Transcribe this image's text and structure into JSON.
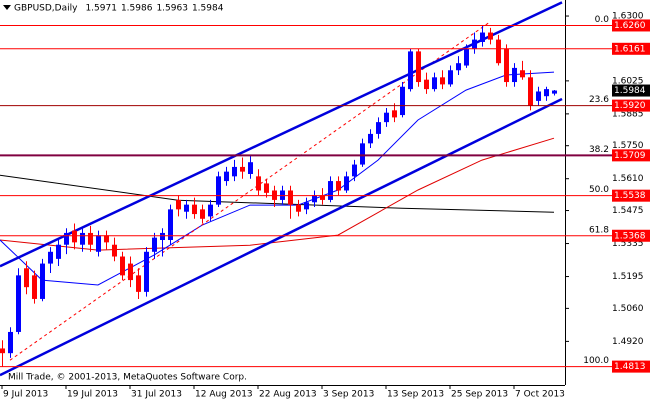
{
  "chart_data": {
    "type": "candlestick",
    "title": "GBPUSD,Daily",
    "footer": "Mill Trade, © 2001-2013, MetaQuotes Software Corp.",
    "up_color": "#0000ff",
    "down_color": "#ff0000",
    "categories": [
      "9 Jul 2013",
      null,
      null,
      null,
      null,
      null,
      null,
      null,
      "19 Jul 2013",
      null,
      null,
      null,
      null,
      null,
      null,
      null,
      "31 Jul 2013",
      null,
      null,
      null,
      null,
      null,
      null,
      null,
      "12 Aug 2013",
      null,
      null,
      null,
      null,
      null,
      null,
      null,
      "22 Aug 2013",
      null,
      null,
      null,
      null,
      null,
      null,
      null,
      "3 Sep 2013",
      null,
      null,
      null,
      null,
      null,
      null,
      null,
      "13 Sep 2013",
      null,
      null,
      null,
      null,
      null,
      null,
      null,
      "25 Sep 2013",
      null,
      null,
      null,
      null,
      null,
      null,
      null,
      "7 Oct 2013",
      null,
      null,
      null,
      null,
      null
    ],
    "open": [
      1.489,
      1.487,
      1.496,
      1.523,
      1.52,
      1.51,
      1.525,
      1.527,
      1.533,
      1.539,
      1.533,
      1.538,
      1.53,
      1.537,
      1.533,
      1.528,
      1.525,
      1.52,
      1.513,
      1.53,
      1.535,
      1.535,
      1.552,
      1.547,
      1.55,
      1.548,
      1.545,
      1.55,
      1.56,
      1.562,
      1.566,
      1.563,
      1.562,
      1.559,
      1.556,
      1.552,
      1.556,
      1.55,
      1.548,
      1.551,
      1.554,
      1.552,
      1.56,
      1.556,
      1.562,
      1.567,
      1.576,
      1.58,
      1.585,
      1.59,
      1.588,
      1.599,
      1.615,
      1.603,
      1.599,
      1.604,
      1.601,
      1.607,
      1.609,
      1.616,
      1.619,
      1.623,
      1.62,
      1.616,
      1.602,
      1.607,
      1.604,
      1.594,
      1.596,
      1.5971
    ],
    "high": [
      1.4925,
      1.498,
      1.523,
      1.526,
      1.522,
      1.527,
      1.532,
      1.535,
      1.54,
      1.542,
      1.54,
      1.541,
      1.539,
      1.539,
      1.536,
      1.53,
      1.528,
      1.523,
      1.532,
      1.538,
      1.54,
      1.55,
      1.554,
      1.552,
      1.553,
      1.55,
      1.552,
      1.564,
      1.566,
      1.569,
      1.57,
      1.5709,
      1.565,
      1.561,
      1.558,
      1.558,
      1.558,
      1.552,
      1.553,
      1.556,
      1.557,
      1.562,
      1.562,
      1.564,
      1.569,
      1.578,
      1.582,
      1.587,
      1.591,
      1.593,
      1.602,
      1.6161,
      1.616,
      1.606,
      1.606,
      1.607,
      1.609,
      1.613,
      1.618,
      1.623,
      1.626,
      1.625,
      1.622,
      1.618,
      1.61,
      1.611,
      1.607,
      1.6,
      1.6,
      1.5986
    ],
    "low": [
      1.4813,
      1.485,
      1.495,
      1.512,
      1.508,
      1.509,
      1.521,
      1.524,
      1.529,
      1.531,
      1.53,
      1.53,
      1.528,
      1.531,
      1.526,
      1.518,
      1.515,
      1.51,
      1.511,
      1.527,
      1.528,
      1.533,
      1.545,
      1.544,
      1.544,
      1.542,
      1.543,
      1.549,
      1.558,
      1.56,
      1.561,
      1.561,
      1.554,
      1.553,
      1.549,
      1.55,
      1.544,
      1.545,
      1.546,
      1.549,
      1.55,
      1.551,
      1.554,
      1.555,
      1.56,
      1.566,
      1.574,
      1.578,
      1.583,
      1.585,
      1.587,
      1.598,
      1.6,
      1.597,
      1.598,
      1.599,
      1.6,
      1.605,
      1.608,
      1.614,
      1.617,
      1.618,
      1.609,
      1.6,
      1.6,
      1.603,
      1.59,
      1.592,
      1.594,
      1.5963
    ],
    "close": [
      1.487,
      1.496,
      1.52,
      1.515,
      1.51,
      1.525,
      1.53,
      1.533,
      1.538,
      1.534,
      1.538,
      1.533,
      1.537,
      1.534,
      1.528,
      1.52,
      1.518,
      1.513,
      1.53,
      1.536,
      1.538,
      1.548,
      1.548,
      1.55,
      1.546,
      1.544,
      1.55,
      1.562,
      1.564,
      1.566,
      1.564,
      1.568,
      1.556,
      1.555,
      1.552,
      1.556,
      1.55,
      1.547,
      1.551,
      1.554,
      1.552,
      1.56,
      1.556,
      1.562,
      1.567,
      1.576,
      1.58,
      1.585,
      1.589,
      1.587,
      1.6,
      1.615,
      1.602,
      1.599,
      1.604,
      1.601,
      1.607,
      1.61,
      1.616,
      1.62,
      1.623,
      1.62,
      1.61,
      1.602,
      1.608,
      1.604,
      1.592,
      1.598,
      1.599,
      1.5984
    ],
    "xlim": [
      -0.25,
      70.375
    ],
    "ylim": [
      1.4735,
      1.6368
    ],
    "yticks": [
      {
        "value": 1.63,
        "label": "1.6300"
      },
      1.6025,
      1.5885,
      {
        "value": 1.575,
        "label": "1.5750"
      },
      {
        "value": 1.561,
        "label": "1.5610"
      },
      1.5475,
      1.5335,
      1.5195,
      {
        "value": 1.506,
        "label": "1.5060"
      },
      {
        "value": 1.492,
        "label": "1.4920"
      }
    ],
    "overlays": [
      {
        "color": "#000000",
        "line_style": "solid",
        "weight": "thin",
        "x": [
          -0.25,
          22,
          50,
          69
        ],
        "values": [
          1.5625,
          1.5519,
          1.5485,
          1.5468
        ]
      },
      {
        "color": "#e00000",
        "line_style": "solid",
        "weight": "thin",
        "x": [
          -0.25,
          12,
          31,
          42,
          52,
          60,
          69
        ],
        "values": [
          1.535,
          1.5307,
          1.5328,
          1.5371,
          1.5562,
          1.5689,
          1.5782
        ]
      },
      {
        "color": "#0000ff",
        "line_style": "solid",
        "weight": "thin",
        "x": [
          -0.25,
          5,
          12,
          19,
          25,
          31,
          37,
          42,
          47,
          52,
          58,
          63,
          69
        ],
        "values": [
          1.535,
          1.518,
          1.5159,
          1.5286,
          1.5413,
          1.5498,
          1.5498,
          1.5562,
          1.5689,
          1.5859,
          1.5986,
          1.605,
          1.6062
        ]
      },
      {
        "color": "#ff0000",
        "line_style": "dashed",
        "weight": "thin",
        "x": [
          1,
          61
        ],
        "values": [
          1.484,
          1.6275
        ]
      },
      {
        "color": "#0000dd",
        "line_style": "solid",
        "weight": "thick",
        "x": [
          -0.25,
          70
        ],
        "values": [
          1.5239,
          1.6358
        ]
      },
      {
        "color": "#0000dd",
        "line_style": "solid",
        "weight": "thick",
        "x": [
          -0.25,
          70
        ],
        "values": [
          1.4777,
          1.5948
        ]
      }
    ],
    "levels": [
      {
        "value": {
          "value": 1.626,
          "label": "1.6260"
        },
        "fib": "0.0",
        "color": "#ff0000",
        "weight": "thin"
      },
      {
        "value": 1.6161,
        "color": "#ff0000",
        "weight": "thin"
      },
      {
        "value": {
          "value": 1.592,
          "label": "1.5920"
        },
        "fib": "23.6",
        "color": "#a00000",
        "weight": "thin"
      },
      {
        "value": {
          "value": 1.5709,
          "label": "1.5709"
        },
        "fib": "38.2",
        "color": "#800040",
        "weight": "thick"
      },
      {
        "value": {
          "value": 1.5538,
          "label": "1.5538"
        },
        "fib": "50.0",
        "color": "#ff0000",
        "weight": "thin"
      },
      {
        "value": {
          "value": 1.5368,
          "label": "1.5368"
        },
        "fib": "61.8",
        "color": "#ff0000",
        "weight": "thin"
      },
      {
        "value": {
          "value": 1.4813,
          "label": "1.4813"
        },
        "fib": "100.0",
        "color": "#ff0000",
        "weight": "thin"
      }
    ]
  }
}
